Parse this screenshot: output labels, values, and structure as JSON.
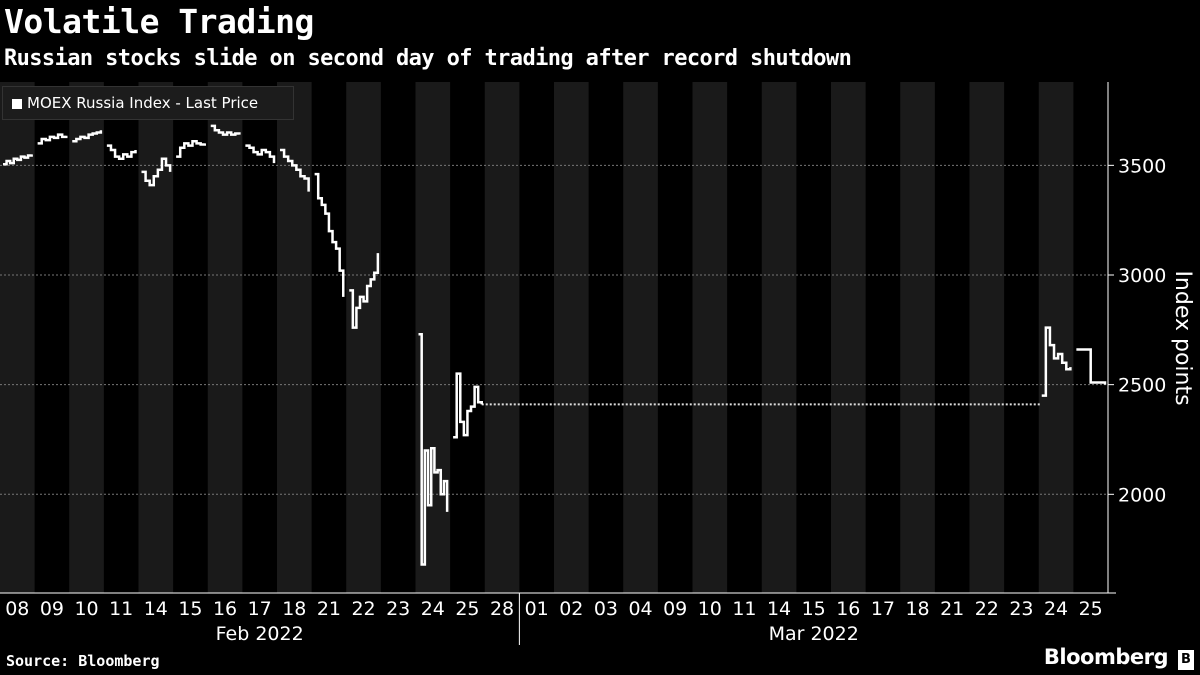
{
  "header": {
    "title": "Volatile Trading",
    "subtitle": "Russian stocks slide on second day of trading after record shutdown"
  },
  "footer": {
    "source": "Source: Bloomberg",
    "brand": "Bloomberg"
  },
  "colors": {
    "background": "#000000",
    "band": "#1a1a1a",
    "line": "#ffffff",
    "grid": "#777777"
  },
  "chart_data": {
    "type": "line",
    "title": "Volatile Trading",
    "subtitle": "Russian stocks slide on second day of trading after record shutdown",
    "ylabel": "Index points",
    "ylim": [
      1550,
      3880
    ],
    "yticks": [
      2000,
      2500,
      3000,
      3500
    ],
    "grid": true,
    "legend": {
      "position": "top-left",
      "entries": [
        "MOEX Russia Index - Last Price"
      ]
    },
    "x_month_labels": [
      "Feb 2022",
      "Mar 2022"
    ],
    "x_day_labels": [
      "08",
      "09",
      "10",
      "11",
      "14",
      "15",
      "16",
      "17",
      "18",
      "21",
      "22",
      "23",
      "24",
      "25",
      "28",
      "01",
      "02",
      "03",
      "04",
      "09",
      "10",
      "11",
      "14",
      "15",
      "16",
      "17",
      "18",
      "21",
      "22",
      "23",
      "24",
      "25"
    ],
    "series": [
      {
        "name": "MOEX Russia Index - Last Price",
        "days": [
          {
            "day": 0,
            "points": [
              3505,
              3520,
              3510,
              3530,
              3525,
              3540,
              3535,
              3545,
              3550
            ]
          },
          {
            "day": 1,
            "points": [
              3600,
              3620,
              3615,
              3630,
              3625,
              3640,
              3630,
              3635
            ]
          },
          {
            "day": 2,
            "points": [
              3610,
              3620,
              3630,
              3625,
              3640,
              3645,
              3650,
              3660
            ]
          },
          {
            "day": 3,
            "points": [
              3590,
              3570,
              3540,
              3530,
              3550,
              3540,
              3560,
              3570
            ]
          },
          {
            "day": 4,
            "points": [
              3470,
              3430,
              3410,
              3450,
              3480,
              3530,
              3500,
              3470
            ]
          },
          {
            "day": 5,
            "points": [
              3540,
              3580,
              3600,
              3590,
              3610,
              3600,
              3595,
              3600
            ]
          },
          {
            "day": 6,
            "points": [
              3680,
              3660,
              3650,
              3640,
              3650,
              3640,
              3645,
              3640
            ]
          },
          {
            "day": 7,
            "points": [
              3590,
              3580,
              3560,
              3550,
              3570,
              3560,
              3540,
              3510
            ]
          },
          {
            "day": 8,
            "points": [
              3570,
              3540,
              3520,
              3500,
              3480,
              3450,
              3440,
              3380
            ]
          },
          {
            "day": 9,
            "points": [
              3460,
              3350,
              3320,
              3280,
              3200,
              3150,
              3120,
              3020,
              2900
            ]
          },
          {
            "day": 10,
            "points": [
              2930,
              2760,
              2850,
              2900,
              2880,
              2950,
              2980,
              3010,
              3100
            ]
          },
          {
            "day": 12,
            "points": [
              2730,
              1680,
              2200,
              1950,
              2210,
              2100,
              2110,
              2000,
              2060,
              1920
            ]
          },
          {
            "day": 13,
            "points": [
              2260,
              2550,
              2330,
              2270,
              2380,
              2400,
              2490,
              2420,
              2410
            ]
          },
          {
            "day": 30,
            "points": [
              2450,
              2760,
              2680,
              2620,
              2640,
              2600,
              2570,
              2580
            ]
          },
          {
            "day": 31,
            "points": [
              2660,
              2510,
              2500
            ]
          }
        ],
        "gap": {
          "from_day": 13,
          "to_day": 30,
          "value": 2410,
          "style": "dotted"
        }
      }
    ]
  }
}
